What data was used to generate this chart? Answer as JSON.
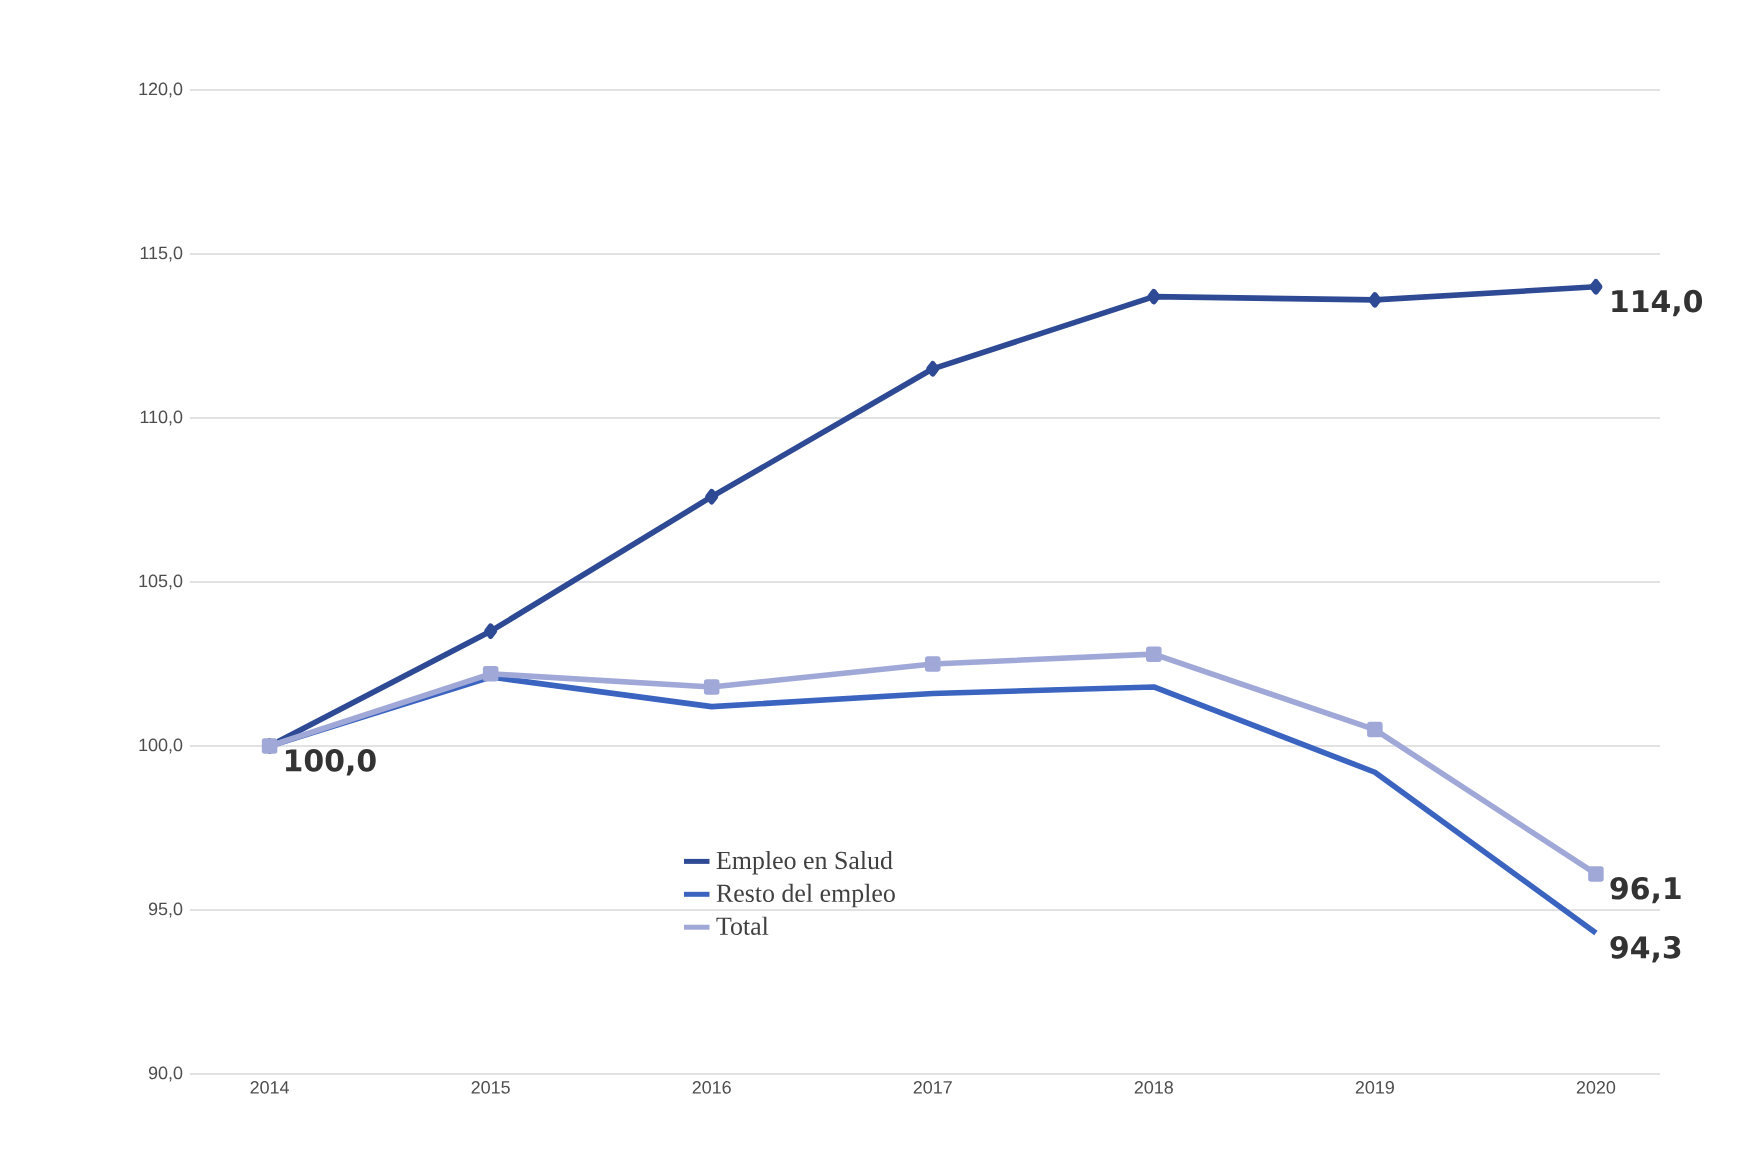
{
  "chart_data": {
    "type": "line",
    "categories": [
      "2014",
      "2015",
      "2016",
      "2017",
      "2018",
      "2019",
      "2020"
    ],
    "ylim": [
      90,
      120
    ],
    "yticks": [
      {
        "value": 90,
        "label": "90,0"
      },
      {
        "value": 95,
        "label": "95,0"
      },
      {
        "value": 100,
        "label": "100,0"
      },
      {
        "value": 105,
        "label": "105,0"
      },
      {
        "value": 110,
        "label": "110,0"
      },
      {
        "value": 115,
        "label": "115,0"
      },
      {
        "value": 120,
        "label": "120,0"
      }
    ],
    "grid": "y",
    "legend": "bottom",
    "line_style": "solid",
    "series": [
      {
        "name": "Empleo en Salud",
        "color": "#2e4a94",
        "marker": "diamond",
        "values": [
          100.0,
          103.5,
          107.6,
          111.5,
          113.7,
          113.6,
          114.0
        ],
        "value_labels": [
          "100,0",
          null,
          null,
          null,
          null,
          null,
          "114,0"
        ]
      },
      {
        "name": "Resto del empleo",
        "color": "#3a64c0",
        "marker": "none",
        "values": [
          100.0,
          102.1,
          101.2,
          101.6,
          101.8,
          99.2,
          94.3
        ],
        "value_labels": [
          null,
          null,
          null,
          null,
          null,
          null,
          "94,3"
        ]
      },
      {
        "name": "Total",
        "color": "#a0a8d8",
        "marker": "square",
        "values": [
          100.0,
          102.2,
          101.8,
          102.5,
          102.8,
          100.5,
          96.1
        ],
        "value_labels": [
          null,
          null,
          null,
          null,
          null,
          null,
          "96,1"
        ]
      }
    ]
  }
}
